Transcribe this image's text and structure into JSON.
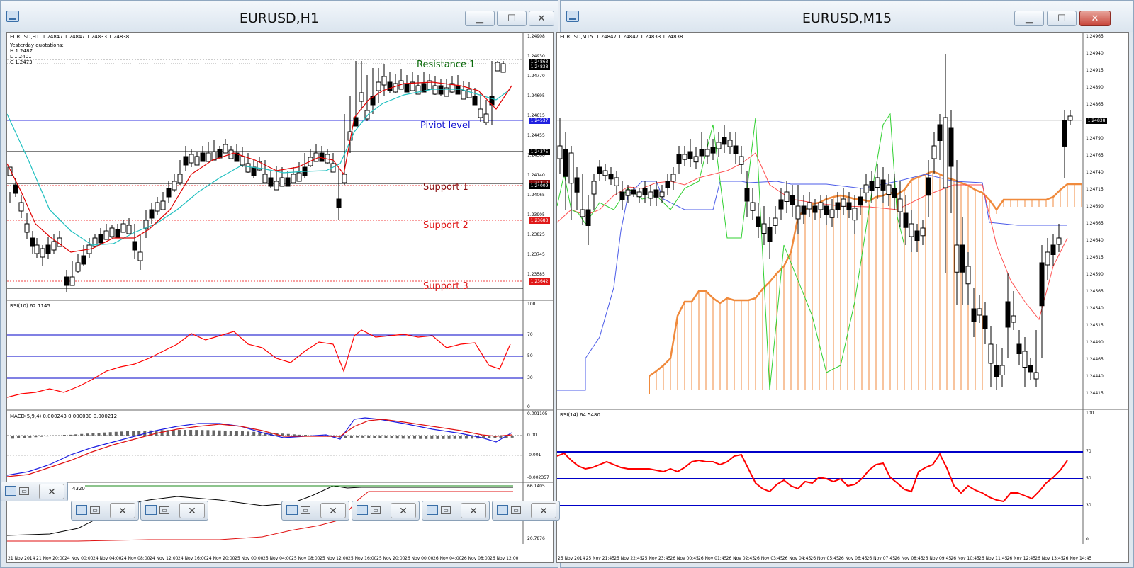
{
  "left_window": {
    "title": "EURUSD,H1",
    "buttons": {
      "minimize": "▁",
      "maximize": "☐",
      "close": "✕"
    },
    "header_info": "EURUSD,H1  1.24847 1.24847 1.24833 1.24838",
    "yesterday_quotations": [
      "Yesterday quotations:",
      "H 1.2487",
      "L 1.2401",
      "C 1.2473"
    ],
    "levels": {
      "resistance_1": "Resistance 1",
      "pivot": "Piviot level",
      "support_1": "Support 1",
      "support_2": "Support 2",
      "support_3": "Support 3"
    },
    "price_axis": [
      "1.24908",
      "1.24930",
      "1.24770",
      "1.24695",
      "1.24615",
      "1.24455",
      "1.24300",
      "1.24140",
      "1.24065",
      "1.23905",
      "1.23825",
      "1.23745",
      "1.23585"
    ],
    "price_boxes": [
      "1.24863",
      "1.24838",
      "1.24537",
      "1.24375",
      "1.24210",
      "1.24009",
      "1.23683",
      "1.23642"
    ],
    "rsi_label": "RSI(10) 62.1145",
    "rsi_axis": [
      "100",
      "70",
      "50",
      "30",
      "0"
    ],
    "macd_label": "MACD(5,9,4) 0.000243 0.000030 0.000212",
    "macd_axis": [
      "0.001105",
      "0.00",
      "-0.001",
      "-0.002357"
    ],
    "stoch_label": "4320",
    "stoch_axis": [
      "66.1405",
      "20.7876"
    ],
    "time_axis": [
      "21 Nov 2014",
      "21 Nov 20:00",
      "24 Nov 00:00",
      "24 Nov 04:00",
      "24 Nov 08:00",
      "24 Nov 12:00",
      "24 Nov 16:00",
      "24 Nov 20:00",
      "25 Nov 00:00",
      "25 Nov 04:00",
      "25 Nov 08:00",
      "25 Nov 12:00",
      "25 Nov 16:00",
      "25 Nov 20:00",
      "26 Nov 00:00",
      "26 Nov 04:00",
      "26 Nov 08:00",
      "26 Nov 12:00"
    ]
  },
  "right_window": {
    "title": "EURUSD,M15",
    "buttons": {
      "minimize": "▁",
      "maximize": "☐",
      "close": "✕"
    },
    "header_info": "EURUSD,M15  1.24847 1.24847 1.24833 1.24838",
    "price_axis": [
      "1.24965",
      "1.24940",
      "1.24915",
      "1.24890",
      "1.24865",
      "1.24815",
      "1.24790",
      "1.24765",
      "1.24740",
      "1.24715",
      "1.24690",
      "1.24665",
      "1.24640",
      "1.24615",
      "1.24590",
      "1.24565",
      "1.24540",
      "1.24515",
      "1.24490",
      "1.24465",
      "1.24440",
      "1.24415"
    ],
    "price_box": "1.24838",
    "rsi_label": "RSI(14) 64.5480",
    "rsi_axis": [
      "100",
      "70",
      "50",
      "30",
      "0"
    ],
    "time_axis": [
      "25 Nov 2014",
      "25 Nov 21:45",
      "25 Nov 22:45",
      "25 Nov 23:45",
      "26 Nov 00:45",
      "26 Nov 01:45",
      "26 Nov 02:45",
      "26 Nov 03:45",
      "26 Nov 04:45",
      "26 Nov 05:45",
      "26 Nov 06:45",
      "26 Nov 07:45",
      "26 Nov 08:45",
      "26 Nov 09:45",
      "26 Nov 10:45",
      "26 Nov 11:45",
      "26 Nov 12:45",
      "26 Nov 13:45",
      "26 Nov 14:45"
    ]
  },
  "minimized_windows": 6,
  "colors": {
    "rsi_line": "#ff0000",
    "level_blue": "#0000c8",
    "ema_fast": "#e00000",
    "ema_slow": "#20c0c0",
    "cloud": "#f08a3c",
    "kijun": "#4b5be8",
    "chikou": "#30d030"
  }
}
